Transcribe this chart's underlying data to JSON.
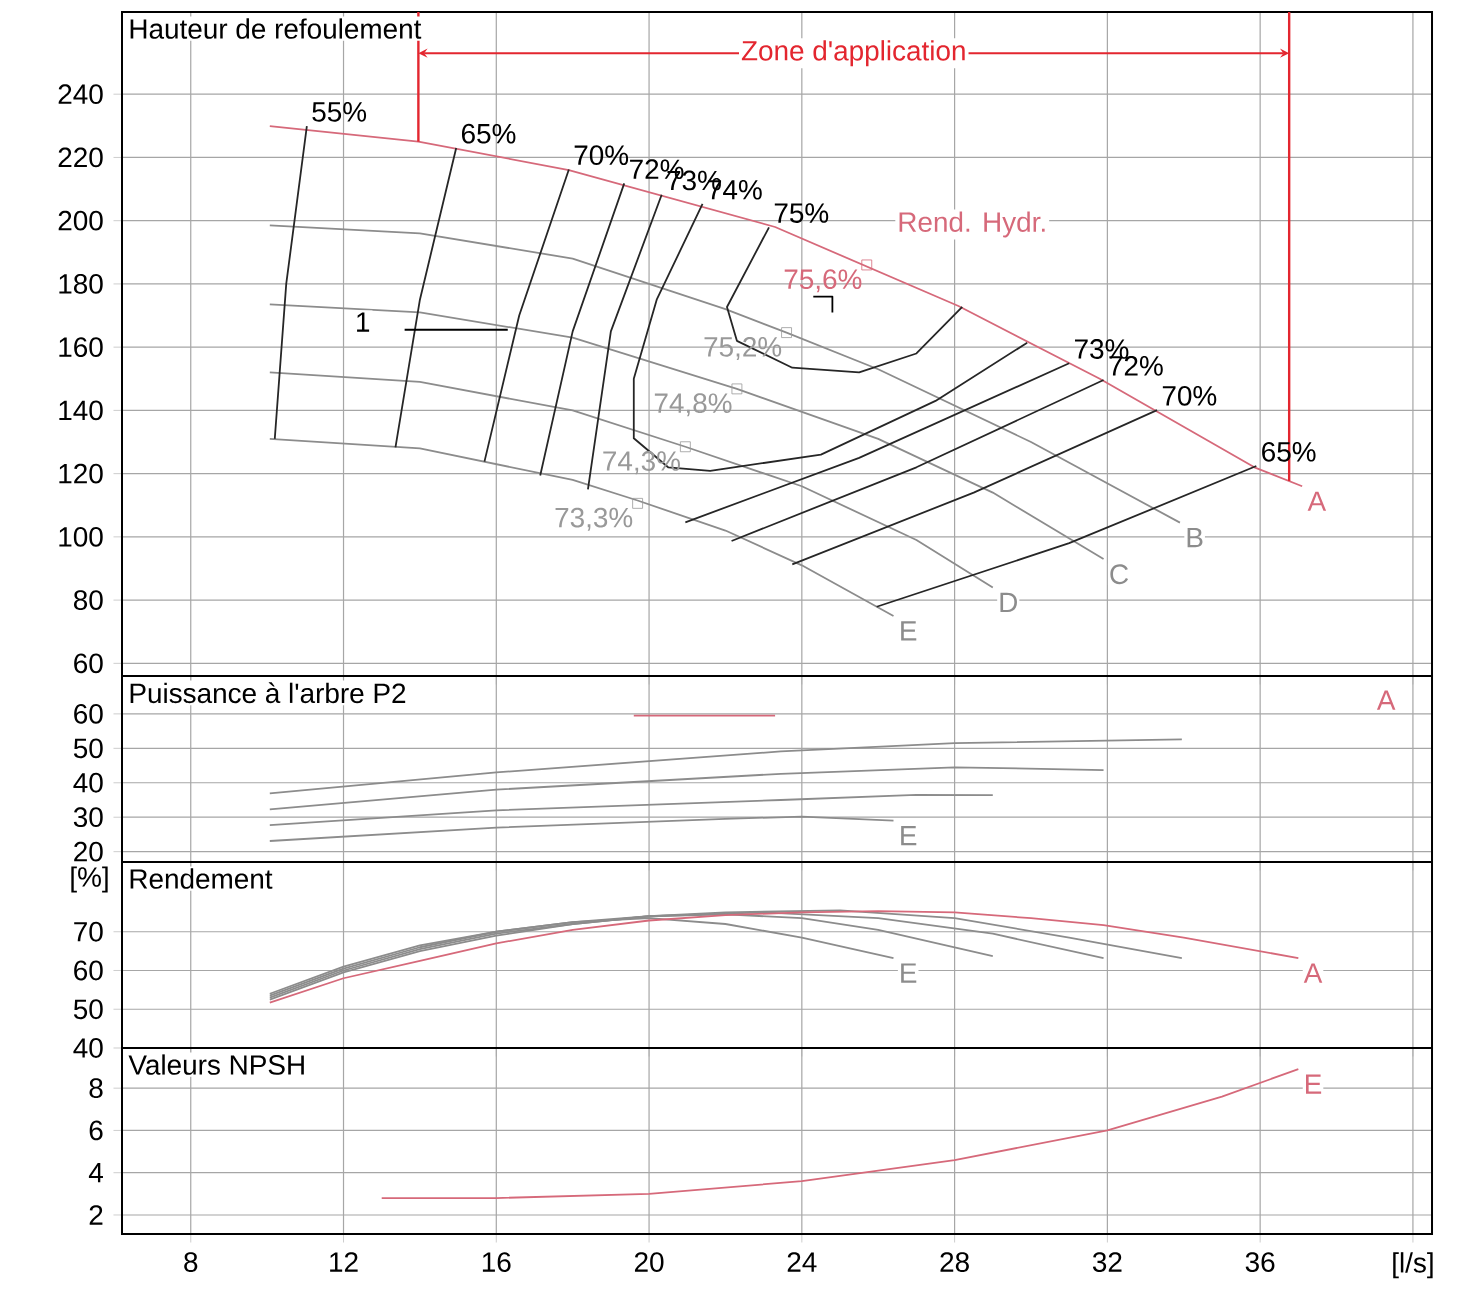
{
  "chart_data": [
    {
      "type": "line",
      "title": "Hauteur de refoulement",
      "xlim": [
        6.2,
        40.5
      ],
      "ylim": [
        56,
        266
      ],
      "xticks": [
        8,
        12,
        16,
        20,
        24,
        28,
        32,
        36,
        40
      ],
      "yticks": [
        60,
        80,
        100,
        120,
        140,
        160,
        180,
        200,
        220,
        240
      ],
      "grid": true,
      "tick_labels": "y",
      "series": [
        {
          "name": "A",
          "color": "#d6697a",
          "x": [
            10.07,
            13.96,
            17.9,
            23.3,
            28.1,
            31.8,
            35.85,
            37.1
          ],
          "values": [
            229.9,
            225,
            216,
            198,
            173,
            150,
            122,
            116
          ]
        },
        {
          "name": "B",
          "color": "#8c8c8c",
          "x": [
            10.07,
            14,
            18,
            22,
            23.6,
            26,
            30,
            33.9
          ],
          "values": [
            198.5,
            196,
            188,
            172,
            164.6,
            153,
            130,
            104.5
          ]
        },
        {
          "name": "C",
          "color": "#8c8c8c",
          "x": [
            10.07,
            14,
            18,
            22.3,
            26,
            29,
            31.9
          ],
          "values": [
            173.5,
            171,
            163,
            146.8,
            131,
            114,
            93
          ]
        },
        {
          "name": "D",
          "color": "#8c8c8c",
          "x": [
            10.07,
            14,
            18,
            20.95,
            24,
            27,
            29
          ],
          "values": [
            152,
            149,
            140,
            128.5,
            116,
            99,
            84
          ]
        },
        {
          "name": "E",
          "color": "#8c8c8c",
          "x": [
            10.07,
            14,
            18,
            19.7,
            22,
            24,
            26.4
          ],
          "values": [
            131,
            128,
            118,
            111.5,
            102,
            91,
            75
          ]
        },
        {
          "color": "#262626",
          "x": [
            10.2,
            10.5,
            11.04
          ],
          "values": [
            131,
            180,
            229.9
          ]
        },
        {
          "color": "#262626",
          "x": [
            13.36,
            14.0,
            14.95
          ],
          "values": [
            128.3,
            175,
            223
          ]
        },
        {
          "color": "#262626",
          "x": [
            15.69,
            16.6,
            17.9
          ],
          "values": [
            123.8,
            170,
            216.2
          ]
        },
        {
          "color": "#262626",
          "x": [
            17.15,
            18.0,
            19.35
          ],
          "values": [
            119.4,
            165,
            211.8
          ]
        },
        {
          "color": "#262626",
          "x": [
            18.4,
            19.0,
            20.33
          ],
          "values": [
            115,
            165,
            208.2
          ]
        },
        {
          "color": "#262626",
          "x": [
            29.9,
            27.5,
            24.5,
            21.6,
            20.5,
            19.6,
            19.6,
            20.2,
            21.4
          ],
          "values": [
            161.4,
            143,
            126,
            120.9,
            122,
            131.2,
            150,
            175,
            205.3
          ]
        },
        {
          "color": "#262626",
          "x": [
            28.2,
            27,
            25.5,
            23.75,
            22.3,
            22.04,
            23.14
          ],
          "values": [
            172.7,
            158,
            152,
            153.5,
            162,
            172.7,
            197.9
          ]
        },
        {
          "color": "#262626",
          "x": [
            20.95,
            25.5,
            31.0
          ],
          "values": [
            104.6,
            125,
            154.9
          ]
        },
        {
          "color": "#262626",
          "x": [
            22.16,
            27,
            31.9
          ],
          "values": [
            98.7,
            122,
            149.6
          ]
        },
        {
          "color": "#262626",
          "x": [
            23.75,
            28.5,
            33.3
          ],
          "values": [
            91.3,
            114,
            140.1
          ]
        },
        {
          "color": "#262626",
          "x": [
            25.96,
            31,
            35.9
          ],
          "values": [
            77.9,
            98,
            122.4
          ]
        },
        {
          "color": "#000000",
          "x": [
            13.6,
            16.3
          ],
          "values": [
            165.5,
            165.5
          ]
        },
        {
          "color": "#000000",
          "x": [
            24.3,
            24.8,
            24.8
          ],
          "values": [
            176,
            176,
            171
          ]
        },
        {
          "type": "scatter",
          "marker": "square",
          "x": [
            25.7,
            23.6,
            22.3,
            20.95,
            19.7
          ],
          "values": [
            186,
            164.6,
            146.8,
            128.5,
            110.6
          ],
          "colors": [
            "#d6697a",
            "#999999",
            "#999999",
            "#999999",
            "#999999"
          ]
        }
      ],
      "ref_lines": [
        {
          "axis": "x",
          "value": 13.96,
          "color": "#e3262f"
        },
        {
          "axis": "x",
          "value": 36.76,
          "color": "#e3262f"
        }
      ],
      "annotations": [
        "Rend. Hydr.",
        "Zone d'application",
        "1",
        {
          "text": "75,6%",
          "x": 25.7,
          "y": 186
        },
        {
          "text": "75,2%",
          "x": 23.6,
          "y": 164.6
        },
        {
          "text": "74,8%",
          "x": 22.3,
          "y": 146.8
        },
        {
          "text": "74,3%",
          "x": 20.95,
          "y": 128.5
        },
        {
          "text": "73,3%",
          "x": 19.7,
          "y": 110.6
        },
        {
          "text": "55%",
          "x": 11.04,
          "y": 229.9
        },
        {
          "text": "65%",
          "x": 14.95,
          "y": 223
        },
        {
          "text": "70%",
          "x": 17.9,
          "y": 216.2
        },
        {
          "text": "72%",
          "x": 19.35,
          "y": 211.8
        },
        {
          "text": "73%",
          "x": 20.33,
          "y": 208.2
        },
        {
          "text": "74%",
          "x": 21.4,
          "y": 205.3
        },
        {
          "text": "75%",
          "x": 23.14,
          "y": 197.9
        },
        {
          "text": "73%",
          "x": 31.0,
          "y": 154.9
        },
        {
          "text": "72%",
          "x": 31.9,
          "y": 149.6
        },
        {
          "text": "70%",
          "x": 33.3,
          "y": 140.1
        },
        {
          "text": "65%",
          "x": 35.9,
          "y": 122.4
        }
      ]
    },
    {
      "type": "line",
      "title": "Puissance à l'arbre P2",
      "xlim": [
        6.2,
        40.5
      ],
      "ylim": [
        17,
        71
      ],
      "xticks": [
        8,
        12,
        16,
        20,
        24,
        28,
        32,
        36,
        40
      ],
      "yticks": [
        20,
        30,
        40,
        50,
        60
      ],
      "grid": true,
      "tick_labels": "y",
      "series": [
        {
          "color": "#d6697a",
          "x": [
            19.6,
            23.3
          ],
          "values": [
            59.5,
            59.5
          ]
        },
        {
          "color": "#8c8c8c",
          "x": [
            10.07,
            16,
            23.45,
            28,
            33.95
          ],
          "values": [
            36.9,
            43,
            49.1,
            51.5,
            52.6
          ]
        },
        {
          "color": "#8c8c8c",
          "x": [
            10.07,
            16,
            23.45,
            28,
            31.9
          ],
          "values": [
            32.3,
            38,
            42.6,
            44.5,
            43.7
          ]
        },
        {
          "color": "#8c8c8c",
          "x": [
            10.07,
            16,
            23.45,
            27,
            29
          ],
          "values": [
            27.7,
            32,
            35,
            36.5,
            36.4
          ]
        },
        {
          "name": "E",
          "color": "#8c8c8c",
          "x": [
            10.07,
            16,
            22,
            24,
            26.4
          ],
          "values": [
            23.1,
            27,
            29.5,
            30.2,
            29.0
          ]
        }
      ],
      "annotations": [
        "A"
      ]
    },
    {
      "type": "line",
      "title": "Rendement",
      "ylabel": "[%]",
      "xlim": [
        6.2,
        40.5
      ],
      "ylim": [
        40,
        88
      ],
      "xticks": [
        8,
        12,
        16,
        20,
        24,
        28,
        32,
        36,
        40
      ],
      "yticks": [
        40,
        50,
        60,
        70
      ],
      "grid": true,
      "tick_labels": "y",
      "series": [
        {
          "color": "#8c8c8c",
          "x": [
            10.07,
            12,
            14,
            16,
            18,
            20,
            22,
            25,
            28,
            31,
            33.95
          ],
          "values": [
            52.5,
            59.5,
            65,
            69,
            72,
            74,
            75,
            75.5,
            73.5,
            68.5,
            63.2
          ]
        },
        {
          "color": "#8c8c8c",
          "x": [
            10.07,
            12,
            14,
            16,
            18,
            20,
            23,
            26,
            29,
            31.9
          ],
          "values": [
            53,
            60,
            65.5,
            69.5,
            72,
            74,
            75,
            73.5,
            69.5,
            63.2
          ]
        },
        {
          "color": "#8c8c8c",
          "x": [
            10.07,
            12,
            14,
            16,
            18,
            20,
            22,
            24,
            26,
            29
          ],
          "values": [
            53.5,
            60.5,
            66,
            70,
            72.5,
            74,
            74.5,
            73.5,
            70.5,
            63.7
          ]
        },
        {
          "name": "E",
          "color": "#8c8c8c",
          "x": [
            10.07,
            12,
            14,
            16,
            18,
            20,
            22,
            24,
            26.4
          ],
          "values": [
            54,
            61,
            66.5,
            70,
            72.5,
            73.5,
            72,
            68.5,
            63.2
          ]
        },
        {
          "name": "A",
          "color": "#d6697a",
          "x": [
            10.07,
            12,
            14,
            16,
            18,
            20,
            22,
            24,
            26,
            28,
            30,
            31.9,
            34,
            37.0
          ],
          "values": [
            51.7,
            58,
            62.5,
            67,
            70.5,
            72.9,
            74.3,
            75,
            75.3,
            75,
            73.5,
            71.7,
            68.5,
            63.2
          ]
        }
      ]
    },
    {
      "type": "line",
      "title": "Valeurs NPSH",
      "xlim": [
        6.2,
        40.5
      ],
      "ylim": [
        1.1,
        9.9
      ],
      "xticks": [
        8,
        12,
        16,
        20,
        24,
        28,
        32,
        36,
        {
          "value": 40,
          "label": "[l/s]"
        }
      ],
      "yticks": [
        2,
        4,
        6,
        8
      ],
      "grid": true,
      "series": [
        {
          "name": "E",
          "color": "#d6697a",
          "x": [
            13.0,
            16,
            20,
            24,
            28,
            32,
            35,
            37.0
          ],
          "values": [
            2.8,
            2.8,
            3.0,
            3.6,
            4.6,
            6.0,
            7.6,
            8.9
          ]
        }
      ]
    }
  ]
}
